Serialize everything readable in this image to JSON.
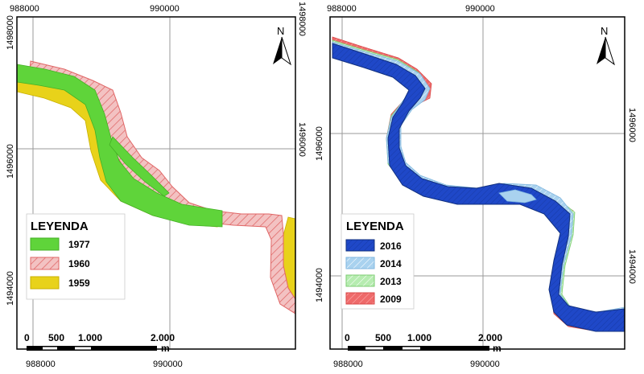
{
  "colors": {
    "frame": "#000000",
    "grid": "#9a9a9a",
    "y1977": "#5fd43a",
    "y1960_fill": "#f3c2c2",
    "y1960_stroke": "#e06666",
    "y1959": "#e8d21a",
    "y2016": "#1f48c8",
    "y2014": "#a9d2ef",
    "y2013": "#b6ecb0",
    "y2009": "#ee6a6a"
  },
  "icons": {
    "north": "north-arrow-icon"
  },
  "left_map": {
    "north_label": "N",
    "top_ticks": [
      "988000",
      "990000"
    ],
    "bottom_ticks": [
      "988000",
      "990000"
    ],
    "right_ticks": [
      "1498000",
      "1496000"
    ],
    "left_ticks": [
      "1498000",
      "1496000",
      "1494000"
    ],
    "legend": {
      "title": "LEYENDA",
      "items": [
        {
          "label": "1977",
          "color": "#5fd43a"
        },
        {
          "label": "1960",
          "color": "#f3c2c2"
        },
        {
          "label": "1959",
          "color": "#e8d21a"
        }
      ]
    },
    "scale": {
      "labels": [
        "0",
        "500",
        "1.000",
        "2.000"
      ],
      "unit": "m"
    }
  },
  "right_map": {
    "north_label": "N",
    "top_ticks": [
      "988000",
      "990000"
    ],
    "bottom_ticks": [
      "988000",
      "990000"
    ],
    "right_ticks": [
      "1496000",
      "1494000"
    ],
    "left_ticks": [
      "1496000",
      "1494000"
    ],
    "legend": {
      "title": "LEYENDA",
      "items": [
        {
          "label": "2016",
          "color": "#1f48c8"
        },
        {
          "label": "2014",
          "color": "#a9d2ef"
        },
        {
          "label": "2013",
          "color": "#b6ecb0"
        },
        {
          "label": "2009",
          "color": "#ee6a6a"
        }
      ]
    },
    "scale": {
      "labels": [
        "0",
        "500",
        "1.000",
        "2.000"
      ],
      "unit": "m"
    }
  }
}
